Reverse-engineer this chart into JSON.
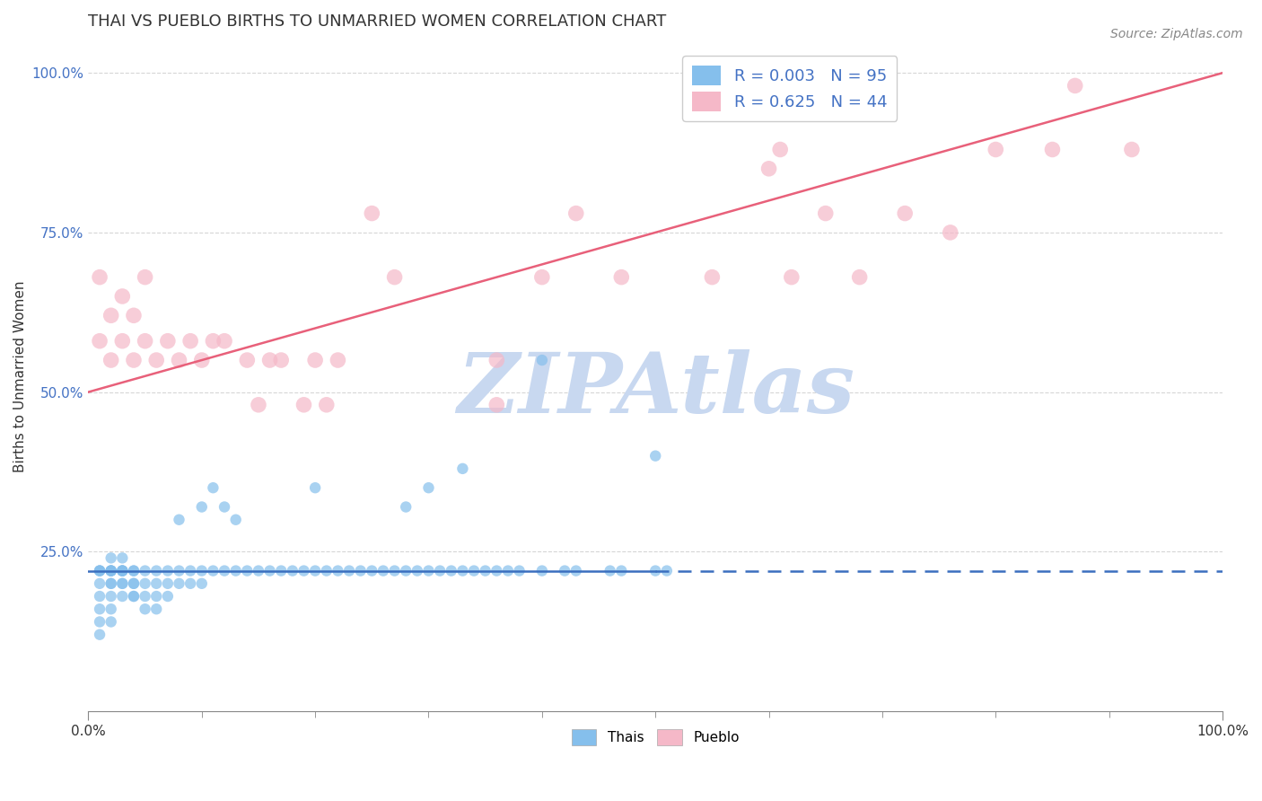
{
  "title": "THAI VS PUEBLO BIRTHS TO UNMARRIED WOMEN CORRELATION CHART",
  "source_text": "Source: ZipAtlas.com",
  "ylabel": "Births to Unmarried Women",
  "xlim": [
    0.0,
    1.0
  ],
  "ylim": [
    0.0,
    1.05
  ],
  "xticklabels": [
    "0.0%",
    "100.0%"
  ],
  "yticklabels": [
    "25.0%",
    "50.0%",
    "75.0%",
    "100.0%"
  ],
  "ytick_positions": [
    0.25,
    0.5,
    0.75,
    1.0
  ],
  "thai_color": "#85BFEC",
  "pueblo_color": "#F5B8C8",
  "thai_line_color": "#3B6FBF",
  "pueblo_line_color": "#E8607A",
  "watermark_color": "#C8D8F0",
  "background_color": "#FFFFFF",
  "grid_color": "#CCCCCC",
  "ytick_color": "#4472C4",
  "xtick_color": "#333333",
  "source_color": "#888888",
  "title_color": "#333333",
  "legend_entry1_r": "0.003",
  "legend_entry1_n": "95",
  "legend_entry2_r": "0.625",
  "legend_entry2_n": "44",
  "thai_x": [
    0.01,
    0.01,
    0.01,
    0.01,
    0.01,
    0.01,
    0.01,
    0.01,
    0.02,
    0.02,
    0.02,
    0.02,
    0.02,
    0.02,
    0.02,
    0.02,
    0.02,
    0.02,
    0.03,
    0.03,
    0.03,
    0.03,
    0.03,
    0.03,
    0.03,
    0.03,
    0.04,
    0.04,
    0.04,
    0.04,
    0.04,
    0.04,
    0.05,
    0.05,
    0.05,
    0.05,
    0.06,
    0.06,
    0.06,
    0.06,
    0.07,
    0.07,
    0.07,
    0.08,
    0.08,
    0.08,
    0.09,
    0.09,
    0.1,
    0.1,
    0.1,
    0.11,
    0.11,
    0.12,
    0.12,
    0.13,
    0.13,
    0.14,
    0.15,
    0.16,
    0.17,
    0.18,
    0.19,
    0.2,
    0.2,
    0.21,
    0.22,
    0.23,
    0.24,
    0.25,
    0.26,
    0.27,
    0.28,
    0.28,
    0.29,
    0.3,
    0.3,
    0.31,
    0.32,
    0.33,
    0.33,
    0.34,
    0.35,
    0.36,
    0.37,
    0.38,
    0.4,
    0.4,
    0.42,
    0.43,
    0.46,
    0.47,
    0.5,
    0.5,
    0.51
  ],
  "thai_y": [
    0.22,
    0.22,
    0.22,
    0.2,
    0.18,
    0.16,
    0.14,
    0.12,
    0.24,
    0.22,
    0.22,
    0.2,
    0.18,
    0.16,
    0.14,
    0.22,
    0.22,
    0.2,
    0.24,
    0.22,
    0.22,
    0.2,
    0.18,
    0.22,
    0.22,
    0.2,
    0.22,
    0.2,
    0.18,
    0.22,
    0.2,
    0.18,
    0.22,
    0.2,
    0.18,
    0.16,
    0.22,
    0.2,
    0.18,
    0.16,
    0.22,
    0.2,
    0.18,
    0.22,
    0.2,
    0.3,
    0.22,
    0.2,
    0.22,
    0.2,
    0.32,
    0.22,
    0.35,
    0.22,
    0.32,
    0.22,
    0.3,
    0.22,
    0.22,
    0.22,
    0.22,
    0.22,
    0.22,
    0.22,
    0.35,
    0.22,
    0.22,
    0.22,
    0.22,
    0.22,
    0.22,
    0.22,
    0.22,
    0.32,
    0.22,
    0.22,
    0.35,
    0.22,
    0.22,
    0.22,
    0.38,
    0.22,
    0.22,
    0.22,
    0.22,
    0.22,
    0.22,
    0.55,
    0.22,
    0.22,
    0.22,
    0.22,
    0.22,
    0.4,
    0.22
  ],
  "pueblo_x": [
    0.01,
    0.01,
    0.02,
    0.02,
    0.03,
    0.03,
    0.04,
    0.04,
    0.05,
    0.05,
    0.06,
    0.07,
    0.08,
    0.09,
    0.1,
    0.11,
    0.12,
    0.14,
    0.15,
    0.16,
    0.17,
    0.19,
    0.2,
    0.21,
    0.22,
    0.25,
    0.27,
    0.36,
    0.36,
    0.4,
    0.43,
    0.47,
    0.55,
    0.6,
    0.61,
    0.62,
    0.65,
    0.68,
    0.72,
    0.76,
    0.8,
    0.85,
    0.87,
    0.92
  ],
  "pueblo_y": [
    0.58,
    0.68,
    0.55,
    0.62,
    0.58,
    0.65,
    0.55,
    0.62,
    0.58,
    0.68,
    0.55,
    0.58,
    0.55,
    0.58,
    0.55,
    0.58,
    0.58,
    0.55,
    0.48,
    0.55,
    0.55,
    0.48,
    0.55,
    0.48,
    0.55,
    0.78,
    0.68,
    0.48,
    0.55,
    0.68,
    0.78,
    0.68,
    0.68,
    0.85,
    0.88,
    0.68,
    0.78,
    0.68,
    0.78,
    0.75,
    0.88,
    0.88,
    0.98,
    0.88
  ],
  "thai_marker_size": 80,
  "pueblo_marker_size": 160,
  "tick_fontsize": 11,
  "title_fontsize": 13,
  "ylabel_fontsize": 11,
  "legend_fontsize": 13,
  "source_fontsize": 10
}
